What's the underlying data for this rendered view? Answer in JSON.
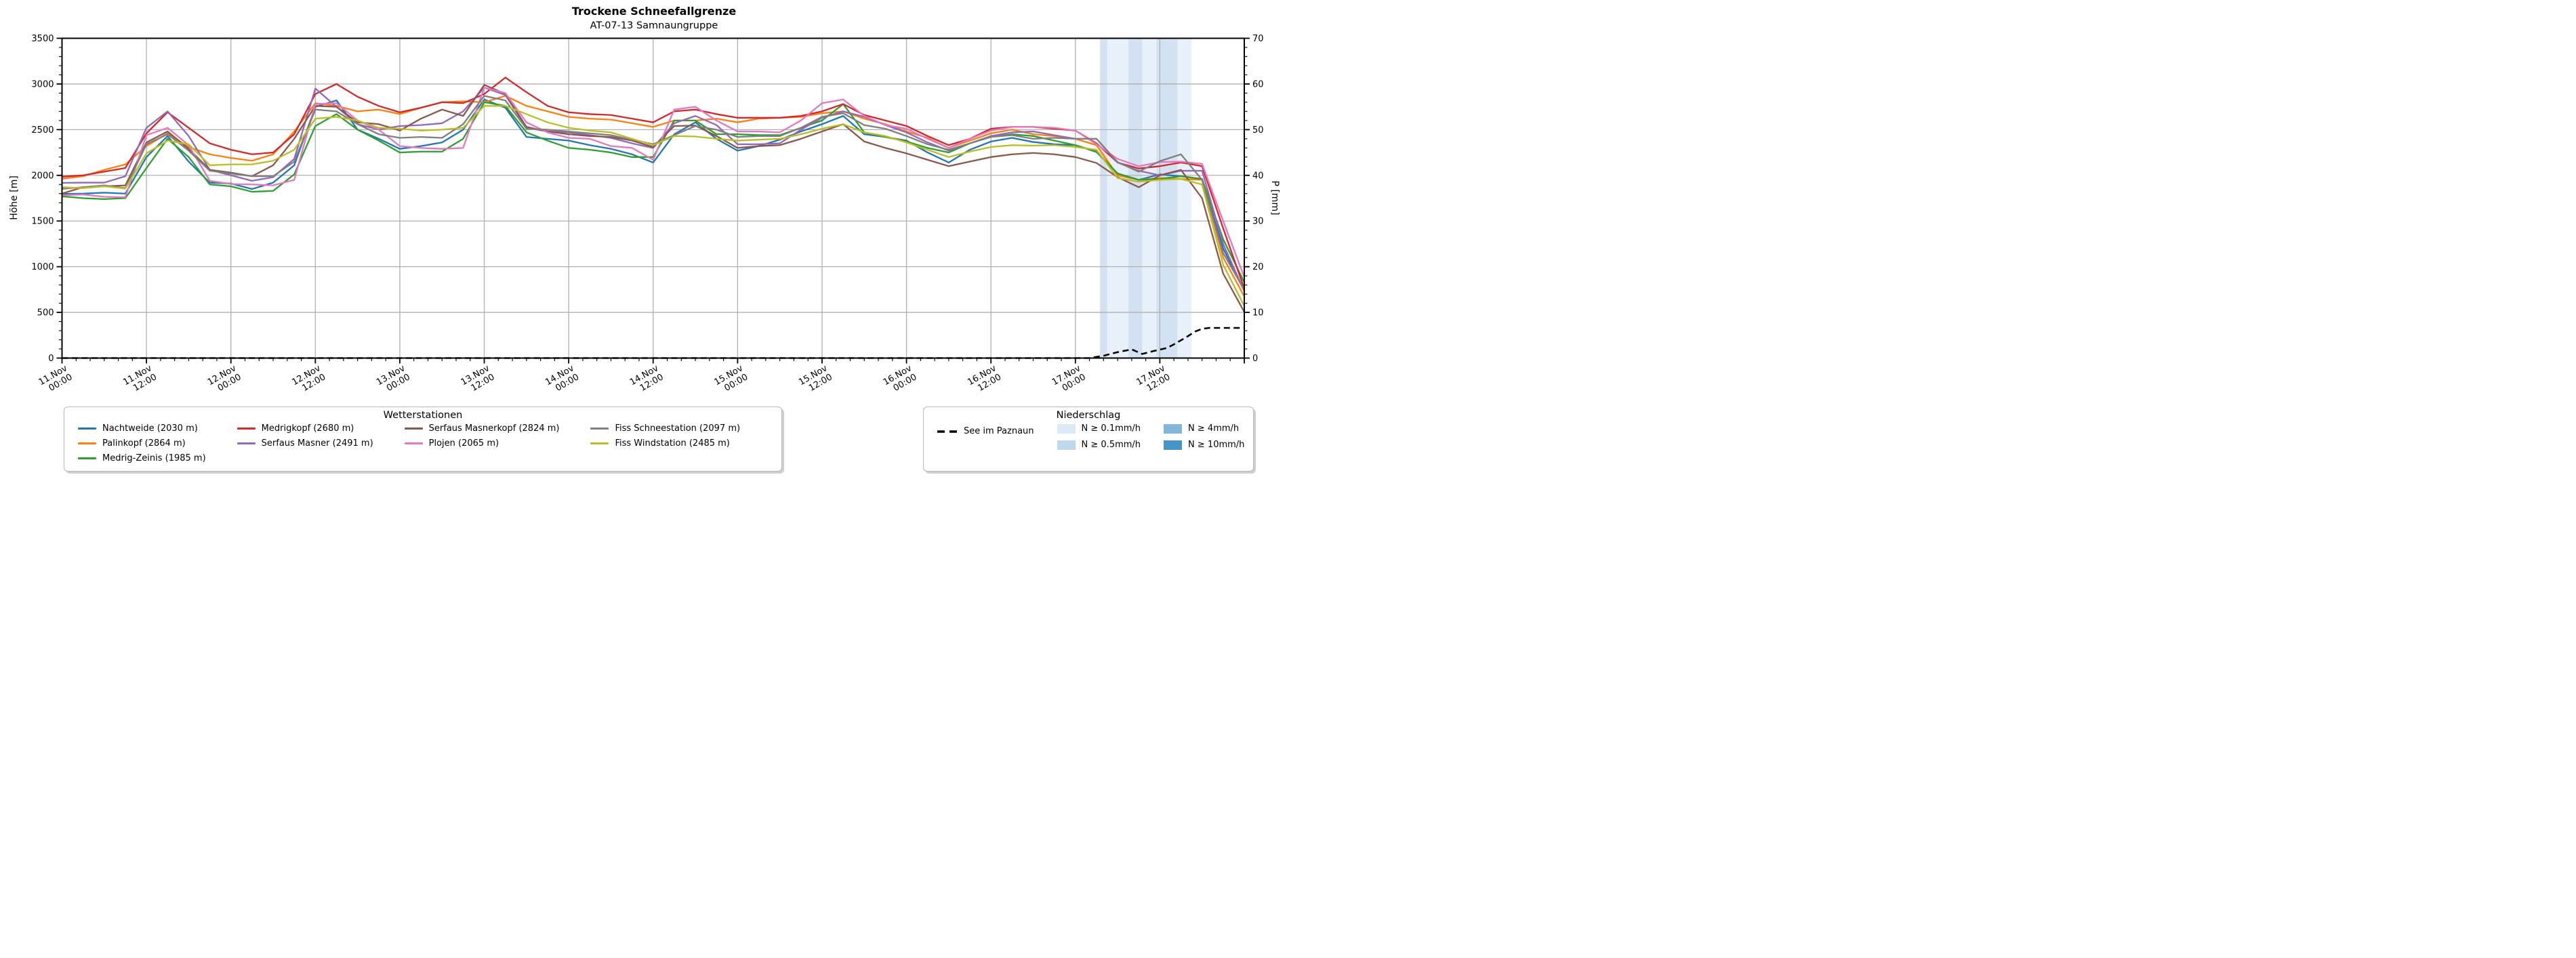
{
  "title": "Trockene Schneefallgrenze",
  "subtitle": "AT-07-13 Samnaungruppe",
  "axes": {
    "y_left_label": "Höhe [m]",
    "y_left_range": [
      0,
      3500
    ],
    "y_left_tick_step": 500,
    "y_left_minor_step": 100,
    "y_right_label": "P [mm]",
    "y_right_range": [
      0,
      70
    ],
    "y_right_tick_step": 10,
    "y_right_minor_step": 2,
    "x_range_hours": [
      0,
      168
    ],
    "x_major_step_hours": 12,
    "x_minor_step_hours": 2,
    "x_tick_hours": [
      0,
      12,
      24,
      36,
      48,
      60,
      72,
      84,
      96,
      108,
      120,
      132,
      144,
      156
    ],
    "x_tick_labels": [
      [
        "11.Nov",
        "00:00"
      ],
      [
        "11.Nov",
        "12:00"
      ],
      [
        "12.Nov",
        "00:00"
      ],
      [
        "12.Nov",
        "12:00"
      ],
      [
        "13.Nov",
        "00:00"
      ],
      [
        "13.Nov",
        "12:00"
      ],
      [
        "14.Nov",
        "00:00"
      ],
      [
        "14.Nov",
        "12:00"
      ],
      [
        "15.Nov",
        "00:00"
      ],
      [
        "15.Nov",
        "12:00"
      ],
      [
        "16.Nov",
        "00:00"
      ],
      [
        "16.Nov",
        "12:00"
      ],
      [
        "17.Nov",
        "00:00"
      ],
      [
        "17.Nov",
        "12:00"
      ]
    ],
    "grid_color": "#b0b0b0"
  },
  "chart_data": {
    "type": "line",
    "title": "Trockene Schneefallgrenze",
    "xlabel": "",
    "ylabel_left": "Höhe [m]",
    "ylabel_right": "P [mm]",
    "x_unit": "hours since 11 Nov 00:00",
    "x_hours": [
      0,
      3,
      6,
      9,
      12,
      15,
      18,
      21,
      24,
      27,
      30,
      33,
      36,
      39,
      42,
      45,
      48,
      51,
      54,
      57,
      60,
      63,
      66,
      69,
      72,
      75,
      78,
      81,
      84,
      87,
      90,
      93,
      96,
      99,
      102,
      105,
      108,
      111,
      114,
      117,
      120,
      123,
      126,
      129,
      132,
      135,
      138,
      141,
      144,
      147,
      150,
      153,
      156,
      159,
      162,
      165,
      168
    ],
    "series": [
      {
        "name": "Nachtweide (2030 m)",
        "color": "#1f77b4",
        "unit": "m",
        "values": [
          1796,
          1800,
          1810,
          1800,
          2200,
          2430,
          2150,
          1920,
          1910,
          1850,
          1920,
          2110,
          2750,
          2820,
          2500,
          2400,
          2290,
          2320,
          2360,
          2500,
          2830,
          2740,
          2420,
          2400,
          2380,
          2330,
          2290,
          2230,
          2140,
          2450,
          2580,
          2400,
          2270,
          2320,
          2390,
          2480,
          2560,
          2650,
          2450,
          2420,
          2380,
          2250,
          2140,
          2280,
          2370,
          2410,
          2365,
          2340,
          2330,
          2255,
          2020,
          1950,
          2010,
          1990,
          1960,
          1200,
          740
        ]
      },
      {
        "name": "Palinkopf (2864 m)",
        "color": "#ff7f0e",
        "unit": "m",
        "values": [
          1962,
          1990,
          2060,
          2120,
          2320,
          2460,
          2310,
          2230,
          2190,
          2160,
          2230,
          2480,
          2790,
          2760,
          2700,
          2720,
          2670,
          2740,
          2800,
          2810,
          2800,
          2870,
          2760,
          2700,
          2640,
          2620,
          2610,
          2570,
          2530,
          2600,
          2600,
          2620,
          2580,
          2620,
          2630,
          2640,
          2680,
          2700,
          2620,
          2560,
          2480,
          2410,
          2300,
          2380,
          2460,
          2500,
          2450,
          2430,
          2400,
          2330,
          2000,
          1950,
          1970,
          1960,
          1950,
          1100,
          675
        ]
      },
      {
        "name": "Medrig-Zeinis (1985 m)",
        "color": "#2ca02c",
        "unit": "m",
        "values": [
          1770,
          1750,
          1740,
          1750,
          2080,
          2400,
          2200,
          1900,
          1880,
          1820,
          1830,
          2010,
          2540,
          2670,
          2500,
          2380,
          2250,
          2260,
          2260,
          2400,
          2800,
          2760,
          2470,
          2380,
          2300,
          2280,
          2250,
          2200,
          2200,
          2600,
          2600,
          2450,
          2450,
          2440,
          2440,
          2520,
          2600,
          2780,
          2470,
          2420,
          2370,
          2300,
          2250,
          2350,
          2420,
          2450,
          2430,
          2380,
          2330,
          2260,
          2020,
          1950,
          1960,
          1990,
          1960,
          1300,
          830
        ]
      },
      {
        "name": "Medrigkopf (2680 m)",
        "color": "#d62728",
        "unit": "m",
        "values": [
          1985,
          2000,
          2040,
          2080,
          2460,
          2690,
          2520,
          2350,
          2280,
          2230,
          2250,
          2450,
          2890,
          3000,
          2860,
          2760,
          2690,
          2740,
          2800,
          2790,
          2890,
          3070,
          2910,
          2760,
          2690,
          2670,
          2660,
          2620,
          2580,
          2700,
          2720,
          2670,
          2630,
          2630,
          2630,
          2650,
          2700,
          2780,
          2660,
          2600,
          2540,
          2430,
          2330,
          2400,
          2510,
          2530,
          2530,
          2510,
          2490,
          2350,
          2140,
          2075,
          2100,
          2140,
          2100,
          1420,
          760
        ]
      },
      {
        "name": "Serfaus Masner (2491 m)",
        "color": "#9467bd",
        "unit": "m",
        "values": [
          1918,
          1920,
          1920,
          1990,
          2520,
          2700,
          2430,
          2060,
          2000,
          1940,
          1980,
          2180,
          2950,
          2750,
          2560,
          2500,
          2540,
          2550,
          2570,
          2700,
          2960,
          2880,
          2520,
          2480,
          2470,
          2440,
          2410,
          2350,
          2300,
          2570,
          2650,
          2550,
          2340,
          2340,
          2350,
          2500,
          2630,
          2700,
          2640,
          2550,
          2470,
          2360,
          2270,
          2350,
          2430,
          2470,
          2480,
          2440,
          2400,
          2400,
          2140,
          2050,
          2000,
          2050,
          2050,
          1250,
          730
        ]
      },
      {
        "name": "Serfaus Masnerkopf (2824 m)",
        "color": "#8c564b",
        "unit": "m",
        "values": [
          1800,
          1870,
          1880,
          1890,
          2360,
          2480,
          2290,
          2060,
          2030,
          1990,
          2110,
          2400,
          2760,
          2750,
          2580,
          2560,
          2490,
          2620,
          2720,
          2650,
          2990,
          2890,
          2530,
          2480,
          2450,
          2430,
          2420,
          2380,
          2310,
          2540,
          2545,
          2430,
          2300,
          2320,
          2330,
          2400,
          2480,
          2560,
          2370,
          2300,
          2240,
          2170,
          2100,
          2150,
          2200,
          2230,
          2245,
          2230,
          2200,
          2135,
          1980,
          1870,
          2000,
          2060,
          1750,
          925,
          505
        ]
      },
      {
        "name": "Plojen (2065 m)",
        "color": "#e377c2",
        "unit": "m",
        "values": [
          1782,
          1790,
          1765,
          1760,
          2440,
          2520,
          2330,
          1940,
          1905,
          1900,
          1890,
          1950,
          2780,
          2790,
          2600,
          2500,
          2320,
          2300,
          2290,
          2300,
          2960,
          2900,
          2580,
          2470,
          2410,
          2400,
          2320,
          2300,
          2170,
          2720,
          2750,
          2600,
          2480,
          2480,
          2470,
          2600,
          2790,
          2830,
          2650,
          2550,
          2510,
          2400,
          2300,
          2400,
          2490,
          2530,
          2530,
          2520,
          2490,
          2340,
          2180,
          2100,
          2145,
          2150,
          2125,
          1500,
          885
        ]
      },
      {
        "name": "Fiss Schneestation (2097 m)",
        "color": "#7f7f7f",
        "unit": "m",
        "values": [
          1852,
          1870,
          1890,
          1860,
          2340,
          2450,
          2270,
          2050,
          2020,
          1990,
          1990,
          2150,
          2720,
          2700,
          2560,
          2450,
          2410,
          2420,
          2410,
          2560,
          2870,
          2820,
          2510,
          2500,
          2480,
          2460,
          2440,
          2390,
          2340,
          2440,
          2540,
          2500,
          2420,
          2430,
          2430,
          2520,
          2640,
          2680,
          2550,
          2510,
          2430,
          2340,
          2280,
          2350,
          2420,
          2440,
          2400,
          2410,
          2400,
          2400,
          2145,
          2040,
          2155,
          2230,
          1950,
          1150,
          745
        ]
      },
      {
        "name": "Fiss Windstation (2485 m)",
        "color": "#bcbd22",
        "unit": "m",
        "values": [
          1870,
          1860,
          1880,
          1855,
          2240,
          2380,
          2340,
          2110,
          2120,
          2120,
          2160,
          2280,
          2620,
          2640,
          2600,
          2520,
          2510,
          2490,
          2500,
          2520,
          2760,
          2760,
          2670,
          2580,
          2520,
          2490,
          2470,
          2400,
          2330,
          2430,
          2425,
          2400,
          2380,
          2390,
          2400,
          2450,
          2510,
          2560,
          2470,
          2430,
          2360,
          2280,
          2200,
          2260,
          2310,
          2330,
          2325,
          2330,
          2310,
          2280,
          1970,
          1930,
          1950,
          1960,
          1900,
          1020,
          570
        ]
      }
    ],
    "dashed_series": {
      "name": "See im Paznaun",
      "color": "#000000",
      "unit": "mm",
      "points": [
        [
          0,
          0
        ],
        [
          72,
          0
        ],
        [
          140,
          0
        ],
        [
          146,
          0
        ],
        [
          148,
          0.5
        ],
        [
          150,
          1.3
        ],
        [
          152,
          1.9
        ],
        [
          153.5,
          0.9
        ],
        [
          155,
          1.5
        ],
        [
          157,
          2.2
        ],
        [
          158,
          3.0
        ],
        [
          160,
          4.8
        ],
        [
          161,
          5.8
        ],
        [
          162,
          6.4
        ],
        [
          163,
          6.6
        ],
        [
          168,
          6.6
        ]
      ]
    },
    "precip_bands": [
      {
        "from_h": 147.5,
        "to_h": 148.5,
        "level": "0.5"
      },
      {
        "from_h": 148.5,
        "to_h": 151.5,
        "level": "0.1"
      },
      {
        "from_h": 151.5,
        "to_h": 153.5,
        "level": "0.5"
      },
      {
        "from_h": 153.5,
        "to_h": 155.5,
        "level": "0.1"
      },
      {
        "from_h": 155.5,
        "to_h": 158.5,
        "level": "0.5"
      },
      {
        "from_h": 158.5,
        "to_h": 160.5,
        "level": "0.1"
      }
    ],
    "band_plot_colors": {
      "0.1": "#e8f0fa",
      "0.5": "#d2e2f2"
    },
    "legend_position": "below"
  },
  "legends": {
    "stations": {
      "title": "Wetterstationen",
      "items": [
        {
          "label": "Nachtweide (2030 m)",
          "color": "#1f77b4"
        },
        {
          "label": "Palinkopf (2864 m)",
          "color": "#ff7f0e"
        },
        {
          "label": "Medrig-Zeinis (1985 m)",
          "color": "#2ca02c"
        },
        {
          "label": "Medrigkopf (2680 m)",
          "color": "#d62728"
        },
        {
          "label": "Serfaus Masner (2491 m)",
          "color": "#9467bd"
        },
        {
          "label": "Serfaus Masnerkopf (2824 m)",
          "color": "#8c564b"
        },
        {
          "label": "Plojen (2065 m)",
          "color": "#e377c2"
        },
        {
          "label": "Fiss Schneestation (2097 m)",
          "color": "#7f7f7f"
        },
        {
          "label": "Fiss Windstation (2485 m)",
          "color": "#bcbd22"
        }
      ]
    },
    "precip": {
      "title": "Niederschlag",
      "line_item": {
        "label": "See im Paznaun",
        "color": "#000000"
      },
      "patches": [
        {
          "label": "N ≥ 0.1mm/h",
          "color": "#dbe9f6"
        },
        {
          "label": "N ≥ 0.5mm/h",
          "color": "#c0d8ec"
        },
        {
          "label": "N ≥ 4mm/h",
          "color": "#82b5da"
        },
        {
          "label": "N ≥ 10mm/h",
          "color": "#4595c7"
        }
      ]
    }
  }
}
